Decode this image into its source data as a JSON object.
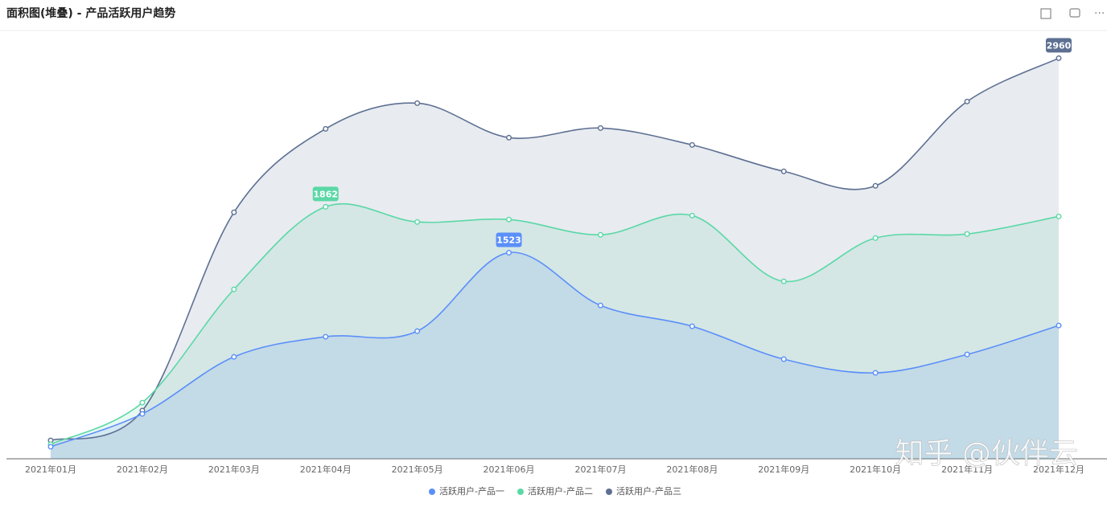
{
  "chart_data": {
    "type": "area",
    "title": "面积图(堆叠) - 产品活跃用户趋势",
    "categories": [
      "2021年01月",
      "2021年02月",
      "2021年03月",
      "2021年04月",
      "2021年05月",
      "2021年06月",
      "2021年07月",
      "2021年08月",
      "2021年09月",
      "2021年10月",
      "2021年11月",
      "2021年12月"
    ],
    "series": [
      {
        "name": "活跃用户-产品一",
        "color": "#5b8ff9",
        "values": [
          89,
          332,
          753,
          902,
          943,
          1523,
          1133,
          979,
          736,
          635,
          771,
          985
        ]
      },
      {
        "name": "活跃用户-产品二",
        "color": "#5ad8a6",
        "values": [
          107,
          415,
          1252,
          1862,
          1750,
          1768,
          1655,
          1797,
          1311,
          1631,
          1661,
          1791
        ]
      },
      {
        "name": "活跃用户-产品三",
        "color": "#5d7092",
        "values": [
          136,
          356,
          1821,
          2438,
          2628,
          2373,
          2444,
          2319,
          2124,
          2017,
          2640,
          2960
        ]
      }
    ],
    "ylim": [
      0,
      3200
    ],
    "legend": "bottom",
    "watermark": "知乎 @伙伴云"
  }
}
